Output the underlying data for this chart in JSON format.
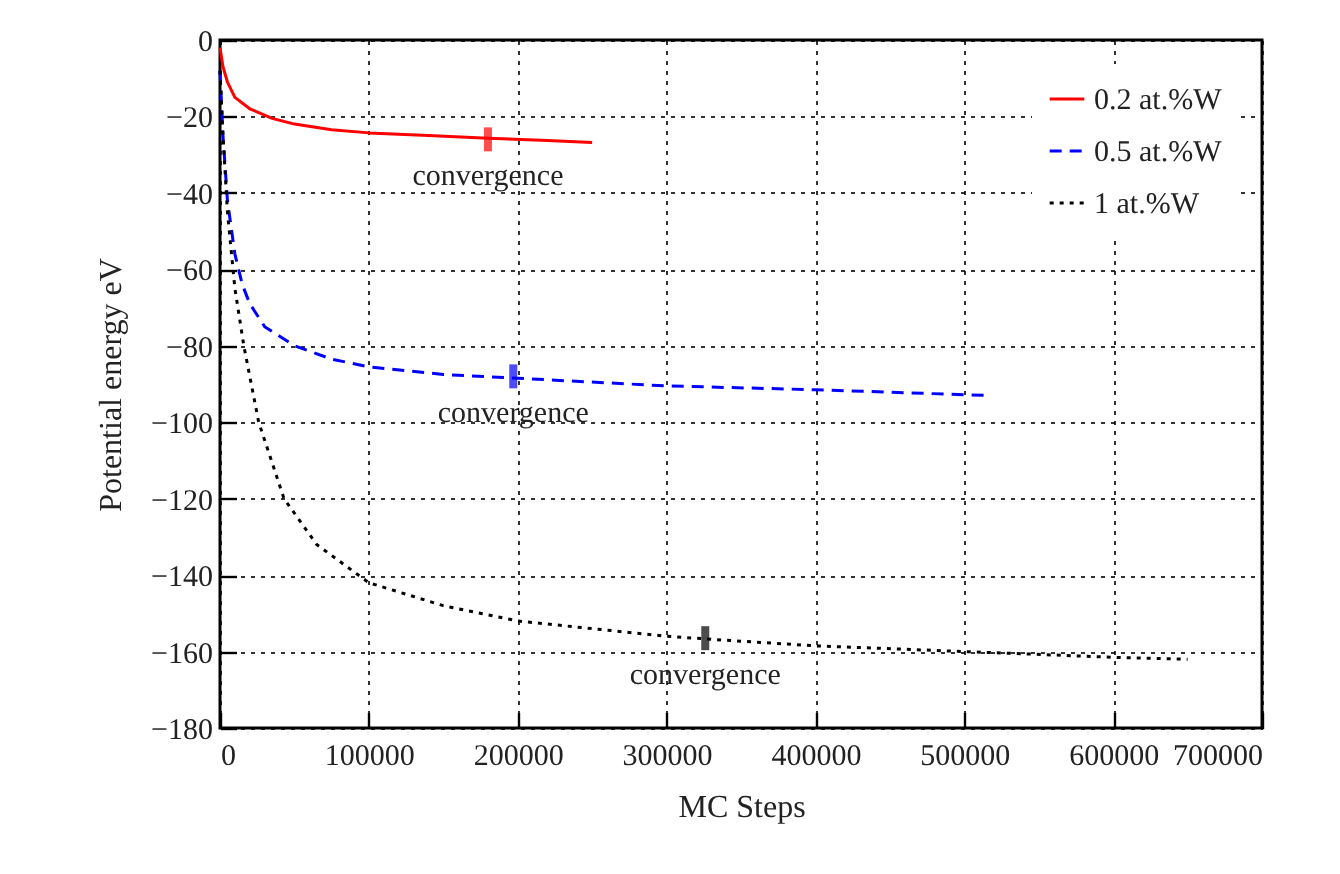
{
  "chart_data": {
    "type": "line",
    "xlabel": "MC Steps",
    "ylabel": "Potential energy eV",
    "xlim": [
      0,
      700000
    ],
    "xticks": [
      0,
      100000,
      200000,
      300000,
      400000,
      500000,
      600000,
      700000
    ],
    "ylim": [
      -180,
      0
    ],
    "yticks": [
      -180,
      -160,
      -140,
      -120,
      -100,
      -80,
      -60,
      -40,
      -20,
      0
    ],
    "grid": true,
    "legend": "top right",
    "marker": "none",
    "series": [
      {
        "name": "0.2 at.%W",
        "color": "#ff0000",
        "line_style": "solid",
        "x": [
          0,
          2000,
          5000,
          10000,
          20000,
          35000,
          50000,
          75000,
          100000,
          140000,
          180000,
          220000,
          250000
        ],
        "values": [
          -2,
          -7,
          -11,
          -15,
          -18,
          -20.5,
          -22,
          -23.5,
          -24.3,
          -25,
          -25.7,
          -26.3,
          -26.8
        ]
      },
      {
        "name": "0.5 at.%W",
        "color": "#0000ff",
        "line_style": "dashed",
        "x": [
          0,
          2000,
          5000,
          10000,
          15000,
          20000,
          30000,
          50000,
          75000,
          100000,
          150000,
          200000,
          300000,
          400000,
          515000
        ],
        "values": [
          -8,
          -25,
          -42,
          -56,
          -64,
          -69,
          -75,
          -80,
          -83.5,
          -85.5,
          -87.5,
          -88.5,
          -90.5,
          -91.5,
          -93
        ]
      },
      {
        "name": "1 at.%W",
        "color": "#000000",
        "line_style": "dotted",
        "x": [
          0,
          2000,
          5000,
          10000,
          16000,
          26000,
          43000,
          65000,
          100000,
          150000,
          200000,
          250000,
          300000,
          350000,
          400000,
          500000,
          600000,
          650000
        ],
        "values": [
          -8,
          -25,
          -45,
          -65,
          -80,
          -100,
          -120,
          -132,
          -142,
          -148,
          -152,
          -154,
          -156,
          -157.3,
          -158.5,
          -160,
          -161.5,
          -162
        ]
      }
    ],
    "annotations": [
      {
        "text": "convergence",
        "x": 180000,
        "y": -26
      },
      {
        "text": "convergence",
        "x": 197000,
        "y": -88
      },
      {
        "text": "convergence",
        "x": 326000,
        "y": -156.5
      }
    ]
  }
}
